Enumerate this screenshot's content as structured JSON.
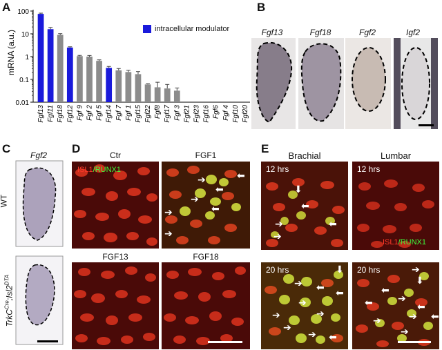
{
  "panels": {
    "A": "A",
    "B": "B",
    "C": "C",
    "D": "D",
    "E": "E"
  },
  "chart_data": {
    "type": "bar",
    "ylabel": "mRNA (a.u.)",
    "yscale": "log",
    "ylim": [
      0.01,
      100
    ],
    "yticks": [
      "0.01",
      "0.1",
      "1",
      "10",
      "100"
    ],
    "categories": [
      "Fgf13",
      "Fgf11",
      "Fgf18",
      "Fgf12",
      "Fgf 9",
      "Fgf 2",
      "Fgf 5",
      "Fgf14",
      "Fgf 7",
      "Fgf 1",
      "Fgf15",
      "Fgf22",
      "Fgf8",
      "Fgf17",
      "Fgf 3",
      "Fgf21",
      "Fgf23",
      "Fgf16",
      "Fgf6",
      "Fgf 4",
      "Fgf10",
      "Fgf20"
    ],
    "values": [
      75,
      16,
      9,
      2.5,
      1.05,
      1.0,
      0.65,
      0.32,
      0.25,
      0.21,
      0.17,
      0.06,
      0.045,
      0.04,
      0.032,
      0,
      0,
      0,
      0,
      0,
      0,
      0
    ],
    "errors": [
      6,
      3,
      1.2,
      0.2,
      0.08,
      0.12,
      0.07,
      0.05,
      0.05,
      0.04,
      0.05,
      0.005,
      0.03,
      0.02,
      0.01,
      0,
      0,
      0,
      0,
      0,
      0,
      0
    ],
    "highlight": [
      true,
      true,
      false,
      true,
      false,
      false,
      false,
      true,
      false,
      false,
      false,
      false,
      false,
      false,
      false,
      false,
      false,
      false,
      false,
      false,
      false,
      false
    ],
    "legend": "intracellular modulator",
    "colors": {
      "highlight": "#1a1adb",
      "default": "#8c8c8c"
    }
  },
  "panel_b": {
    "titles": [
      "Fgf13",
      "Fgf18",
      "Fgf2",
      "Igf2"
    ]
  },
  "panel_c": {
    "title": "Fgf2",
    "row1": "WT",
    "row2_main": "TrkC",
    "row2_sup1": "Cre",
    "row2_mid": ";Isl2",
    "row2_sup2": "DTA"
  },
  "panel_d": {
    "titles": [
      "Ctr",
      "FGF1",
      "FGF13",
      "FGF18"
    ],
    "stain_isl1": "ISL1",
    "stain_runx1": "/RUNX1"
  },
  "panel_e": {
    "col_titles": [
      "Brachial",
      "Lumbar"
    ],
    "times": [
      "12 hrs",
      "12 hrs",
      "20 hrs",
      "20 hrs"
    ],
    "stain_isl1": "ISL1",
    "stain_runx1": "/RUNX1"
  }
}
